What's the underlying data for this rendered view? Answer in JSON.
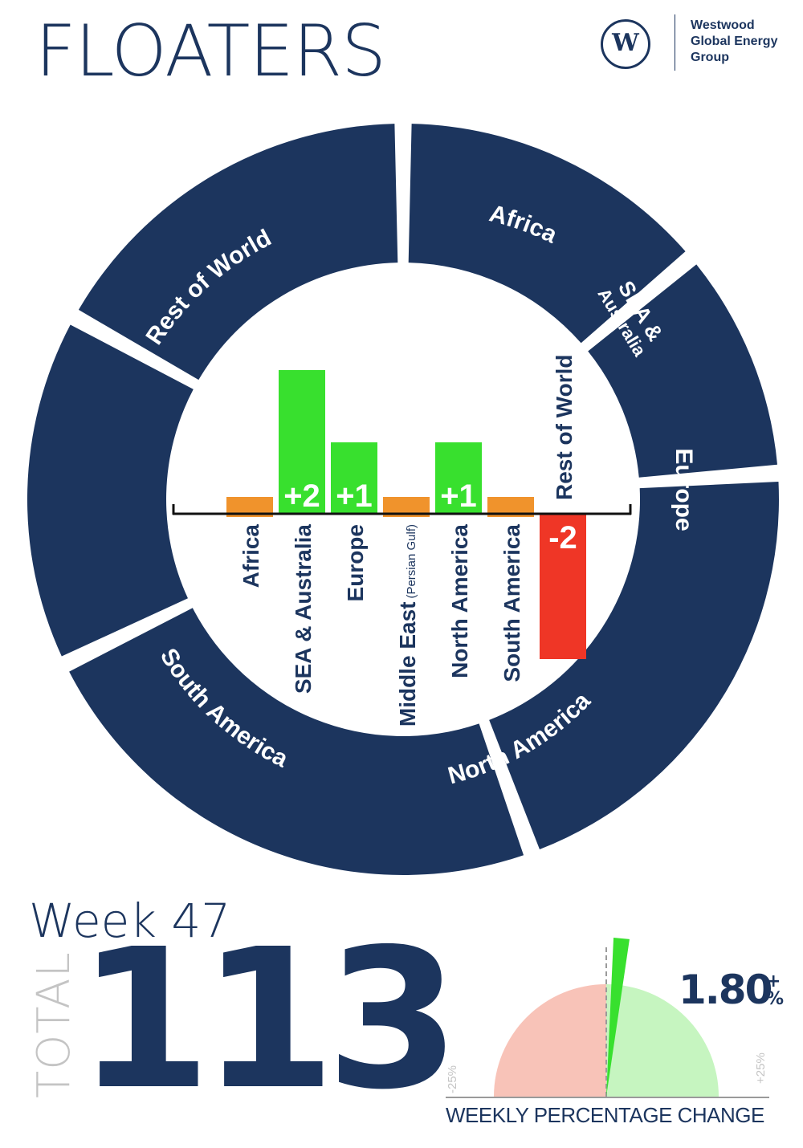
{
  "title": "FLOATERS",
  "logo": {
    "mark": "W",
    "name_lines": [
      "Westwood",
      "Global Energy",
      "Group"
    ]
  },
  "ring": {
    "color": "#1c355e",
    "segments": [
      "Africa",
      "SEA & Australia",
      "Europe",
      "North America",
      "South America",
      "Rest of World"
    ],
    "sea_lines": [
      "SEA &",
      "Australia"
    ]
  },
  "chart_data": {
    "type": "bar",
    "title": "",
    "categories": [
      "Africa",
      "SEA & Australia",
      "Europe",
      "Middle East",
      "North America",
      "South America",
      "Rest of World"
    ],
    "category_notes": [
      "",
      "",
      "",
      "(Persian Gulf)",
      "",
      "",
      ""
    ],
    "values": [
      0,
      2,
      1,
      0,
      1,
      0,
      -2
    ],
    "data_labels": [
      "",
      "+2",
      "+1",
      "",
      "+1",
      "",
      "-2"
    ],
    "colors": {
      "positive": "#38e02e",
      "zero": "#f0932c",
      "negative": "#ef3626"
    },
    "grid": false
  },
  "week_label": "Week 47",
  "total_label": "TOTAL",
  "total_value": "113",
  "gauge": {
    "value": "1.80",
    "value_symbols": [
      "+",
      "%"
    ],
    "change_percent": 1.8,
    "min_label": "-25%",
    "max_label": "+25%",
    "caption": "WEEKLY PERCENTAGE CHANGE",
    "colors": {
      "negative": "#f8c3b8",
      "positive": "#c6f5c0",
      "needle": "#38e02e"
    }
  }
}
